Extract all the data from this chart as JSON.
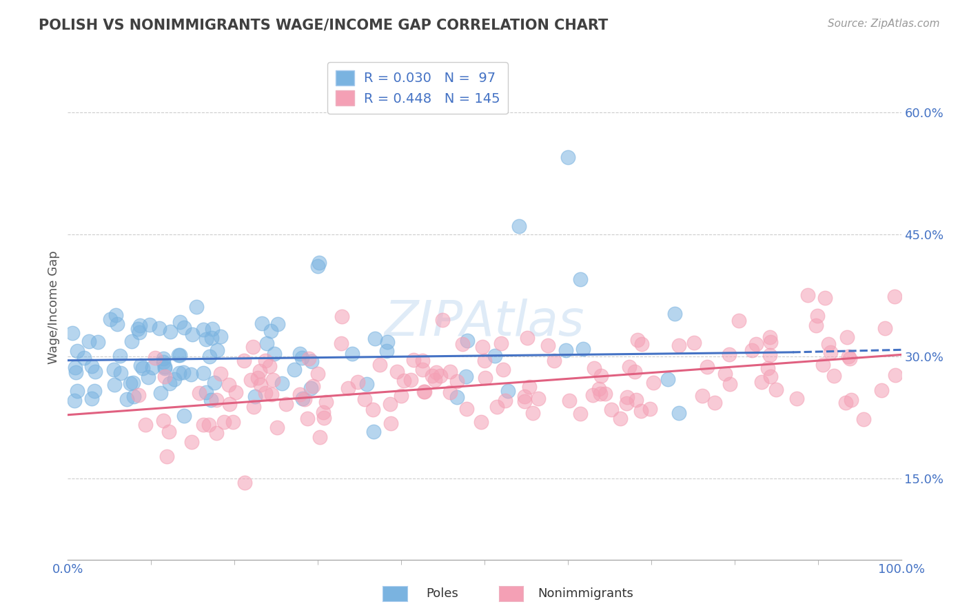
{
  "title": "POLISH VS NONIMMIGRANTS WAGE/INCOME GAP CORRELATION CHART",
  "source": "Source: ZipAtlas.com",
  "ylabel": "Wage/Income Gap",
  "ytick_labels": [
    "15.0%",
    "30.0%",
    "45.0%",
    "60.0%"
  ],
  "ytick_values": [
    0.15,
    0.3,
    0.45,
    0.6
  ],
  "xlim": [
    0.0,
    1.0
  ],
  "ylim": [
    0.05,
    0.67
  ],
  "poles_R": 0.03,
  "poles_N": 97,
  "nonimm_R": 0.448,
  "nonimm_N": 145,
  "poles_color": "#7ab3e0",
  "nonimm_color": "#f4a0b5",
  "poles_line_color": "#4472c4",
  "nonimm_line_color": "#e06080",
  "label_color": "#4472c4",
  "title_color": "#404040",
  "background_color": "#ffffff",
  "legend_label_poles": "Poles",
  "legend_label_nonimm": "Nonimmigrants",
  "poles_line_start_x": 0.0,
  "poles_line_start_y": 0.295,
  "poles_line_end_solid_x": 0.87,
  "poles_line_end_solid_y": 0.305,
  "poles_line_end_dash_x": 1.0,
  "poles_line_end_dash_y": 0.308,
  "nonimm_line_start_x": 0.0,
  "nonimm_line_start_y": 0.228,
  "nonimm_line_end_x": 1.0,
  "nonimm_line_end_y": 0.302
}
